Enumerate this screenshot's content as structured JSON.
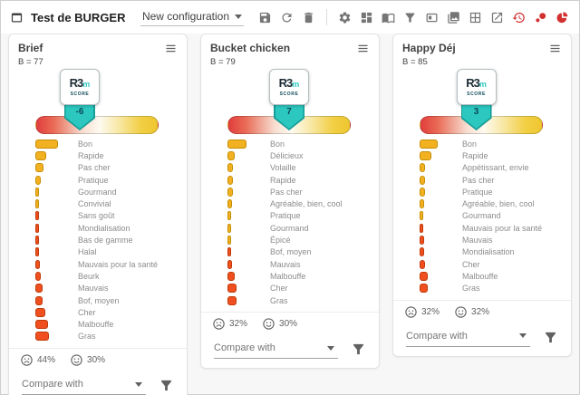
{
  "window": {
    "title": "Test de BURGER"
  },
  "toolbar": {
    "config_label": "New configuration",
    "icon_names": [
      "save-icon",
      "reset-icon",
      "delete-icon",
      "settings-icon",
      "widgets-icon",
      "book-icon",
      "filter-icon",
      "layout-icon",
      "collections-icon",
      "excel-grid-icon",
      "open-in-new-icon",
      "history-red-icon",
      "bubbles-red-icon",
      "pie-red-icon"
    ]
  },
  "logo": {
    "text": "R3m",
    "caption": "score"
  },
  "colors": {
    "teal": "#2cc8c0",
    "red_icon": "#d32f2f",
    "bars": {
      "gold": {
        "fill": "#f2b120",
        "border": "#c68e06"
      },
      "red": {
        "fill": "#f0501f",
        "border": "#bf3a08"
      }
    },
    "gauge_gradient": [
      "#e23d3d",
      "#f7ddd0",
      "#fdfaf0",
      "#f2cf45"
    ]
  },
  "cards": [
    {
      "title": "Brief",
      "b_label": "B = 77",
      "score": "-6",
      "pointer_pct": 36,
      "items": [
        {
          "label": "Bon",
          "value": 25,
          "tone": "gold"
        },
        {
          "label": "Rapide",
          "value": 12,
          "tone": "gold"
        },
        {
          "label": "Pas cher",
          "value": 9,
          "tone": "gold"
        },
        {
          "label": "Pratique",
          "value": 6,
          "tone": "gold"
        },
        {
          "label": "Gourmand",
          "value": 3.5,
          "tone": "gold"
        },
        {
          "label": "Convivial",
          "value": 3.5,
          "tone": "gold"
        },
        {
          "label": "Sans goût",
          "value": 2.5,
          "tone": "red"
        },
        {
          "label": "Mondialisation",
          "value": 2.5,
          "tone": "red"
        },
        {
          "label": "Bas de gamme",
          "value": 2.5,
          "tone": "red"
        },
        {
          "label": "Halal",
          "value": 2.5,
          "tone": "red"
        },
        {
          "label": "Mauvais pour la santé",
          "value": 4.5,
          "tone": "red"
        },
        {
          "label": "Beurk",
          "value": 5.5,
          "tone": "red"
        },
        {
          "label": "Mauvais",
          "value": 8,
          "tone": "red"
        },
        {
          "label": "Bof, moyen",
          "value": 8,
          "tone": "red"
        },
        {
          "label": "Cher",
          "value": 11,
          "tone": "red"
        },
        {
          "label": "Malbouffe",
          "value": 13.5,
          "tone": "red"
        },
        {
          "label": "Gras",
          "value": 15,
          "tone": "red"
        }
      ],
      "sad_pct": "44%",
      "happy_pct": "30%",
      "compare_label": "Compare with"
    },
    {
      "title": "Bucket chicken",
      "b_label": "B = 79",
      "score": "7",
      "pointer_pct": 50,
      "items": [
        {
          "label": "Bon",
          "value": 21,
          "tone": "gold"
        },
        {
          "label": "Délicieux",
          "value": 8,
          "tone": "gold"
        },
        {
          "label": "Volaille",
          "value": 6,
          "tone": "gold"
        },
        {
          "label": "Rapide",
          "value": 6,
          "tone": "gold"
        },
        {
          "label": "Pas cher",
          "value": 6,
          "tone": "gold"
        },
        {
          "label": "Agréable, bien, cool",
          "value": 4.5,
          "tone": "gold"
        },
        {
          "label": "Pratique",
          "value": 4,
          "tone": "gold"
        },
        {
          "label": "Gourmand",
          "value": 3.5,
          "tone": "gold"
        },
        {
          "label": "Épicé",
          "value": 3.5,
          "tone": "gold"
        },
        {
          "label": "Bof, moyen",
          "value": 2.5,
          "tone": "red"
        },
        {
          "label": "Mauvais",
          "value": 5,
          "tone": "red"
        },
        {
          "label": "Malbouffe",
          "value": 8,
          "tone": "red"
        },
        {
          "label": "Cher",
          "value": 10,
          "tone": "red"
        },
        {
          "label": "Gras",
          "value": 10,
          "tone": "red"
        }
      ],
      "sad_pct": "32%",
      "happy_pct": "30%",
      "compare_label": "Compare with"
    },
    {
      "title": "Happy Déj",
      "b_label": "B = 85",
      "score": "3",
      "pointer_pct": 46,
      "items": [
        {
          "label": "Bon",
          "value": 20,
          "tone": "gold"
        },
        {
          "label": "Rapide",
          "value": 13,
          "tone": "gold"
        },
        {
          "label": "Appétissant, envie",
          "value": 6,
          "tone": "gold"
        },
        {
          "label": "Pas cher",
          "value": 6,
          "tone": "gold"
        },
        {
          "label": "Pratique",
          "value": 6,
          "tone": "gold"
        },
        {
          "label": "Agréable, bien, cool",
          "value": 5,
          "tone": "gold"
        },
        {
          "label": "Gourmand",
          "value": 3,
          "tone": "gold"
        },
        {
          "label": "Mauvais pour la santé",
          "value": 2.5,
          "tone": "red"
        },
        {
          "label": "Mauvais",
          "value": 4.5,
          "tone": "red"
        },
        {
          "label": "Mondialisation",
          "value": 4.5,
          "tone": "red"
        },
        {
          "label": "Cher",
          "value": 6,
          "tone": "red"
        },
        {
          "label": "Malbouffe",
          "value": 8.5,
          "tone": "red"
        },
        {
          "label": "Gras",
          "value": 8.5,
          "tone": "red"
        }
      ],
      "sad_pct": "32%",
      "happy_pct": "32%",
      "compare_label": "Compare with"
    }
  ]
}
